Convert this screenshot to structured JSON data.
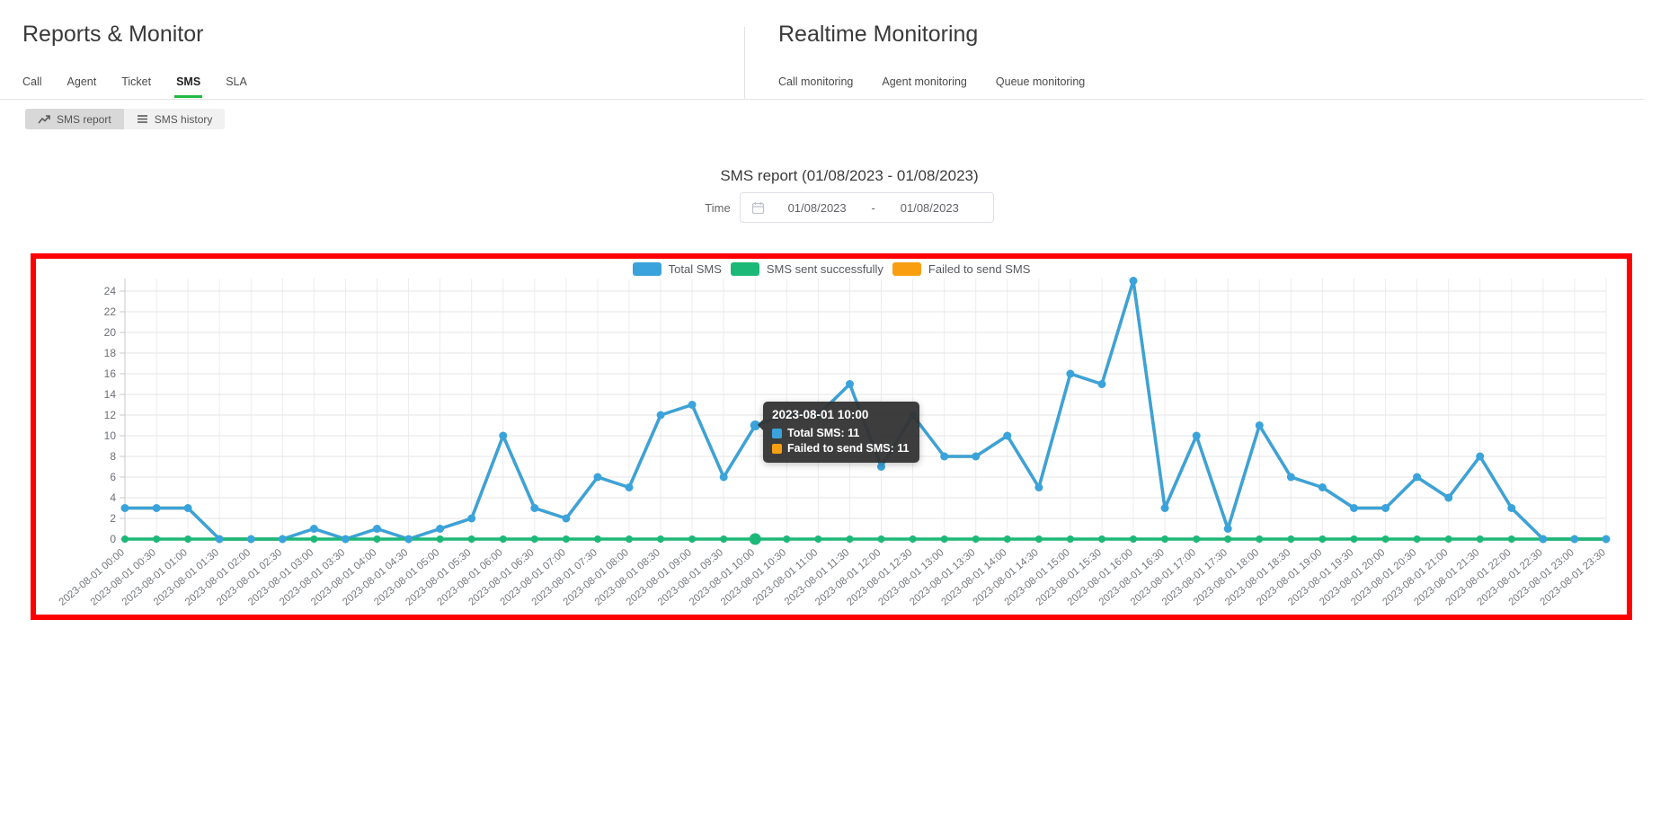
{
  "left_panel": {
    "title": "Reports & Monitor",
    "tabs": [
      "Call",
      "Agent",
      "Ticket",
      "SMS",
      "SLA"
    ],
    "active_tab": "SMS"
  },
  "right_panel": {
    "title": "Realtime Monitoring",
    "tabs": [
      "Call monitoring",
      "Agent monitoring",
      "Queue monitoring"
    ]
  },
  "toolbar": {
    "report_button": "SMS report",
    "history_button": "SMS history"
  },
  "report": {
    "title": "SMS report (01/08/2023 - 01/08/2023)",
    "time_label": "Time",
    "date_from": "01/08/2023",
    "date_separator": "-",
    "date_to": "01/08/2023"
  },
  "chart_data": {
    "type": "line",
    "x": [
      "2023-08-01 00:00",
      "2023-08-01 00:30",
      "2023-08-01 01:00",
      "2023-08-01 01:30",
      "2023-08-01 02:00",
      "2023-08-01 02:30",
      "2023-08-01 03:00",
      "2023-08-01 03:30",
      "2023-08-01 04:00",
      "2023-08-01 04:30",
      "2023-08-01 05:00",
      "2023-08-01 05:30",
      "2023-08-01 06:00",
      "2023-08-01 06:30",
      "2023-08-01 07:00",
      "2023-08-01 07:30",
      "2023-08-01 08:00",
      "2023-08-01 08:30",
      "2023-08-01 09:00",
      "2023-08-01 09:30",
      "2023-08-01 10:00",
      "2023-08-01 10:30",
      "2023-08-01 11:00",
      "2023-08-01 11:30",
      "2023-08-01 12:00",
      "2023-08-01 12:30",
      "2023-08-01 13:00",
      "2023-08-01 13:30",
      "2023-08-01 14:00",
      "2023-08-01 14:30",
      "2023-08-01 15:00",
      "2023-08-01 15:30",
      "2023-08-01 16:00",
      "2023-08-01 16:30",
      "2023-08-01 17:00",
      "2023-08-01 17:30",
      "2023-08-01 18:00",
      "2023-08-01 18:30",
      "2023-08-01 19:00",
      "2023-08-01 19:30",
      "2023-08-01 20:00",
      "2023-08-01 20:30",
      "2023-08-01 21:00",
      "2023-08-01 21:30",
      "2023-08-01 22:00",
      "2023-08-01 22:30",
      "2023-08-01 23:00",
      "2023-08-01 23:30"
    ],
    "series": [
      {
        "name": "Total SMS",
        "color": "#3aa3db",
        "values": [
          3,
          3,
          3,
          0,
          0,
          0,
          1,
          0,
          1,
          0,
          1,
          2,
          10,
          3,
          2,
          6,
          5,
          12,
          13,
          6,
          11,
          12,
          12,
          15,
          7,
          12,
          8,
          8,
          10,
          5,
          16,
          15,
          25,
          3,
          10,
          1,
          11,
          6,
          5,
          3,
          3,
          6,
          4,
          8,
          3,
          0,
          0,
          0
        ]
      },
      {
        "name": "SMS sent successfully",
        "color": "#1cb877",
        "values": [
          0,
          0,
          0,
          0,
          0,
          0,
          0,
          0,
          0,
          0,
          0,
          0,
          0,
          0,
          0,
          0,
          0,
          0,
          0,
          0,
          0,
          0,
          0,
          0,
          0,
          0,
          0,
          0,
          0,
          0,
          0,
          0,
          0,
          0,
          0,
          0,
          0,
          0,
          0,
          0,
          0,
          0,
          0,
          0,
          0,
          0,
          0,
          0
        ]
      },
      {
        "name": "Failed to send SMS",
        "color": "#f99e11",
        "values": [
          3,
          3,
          3,
          0,
          0,
          0,
          1,
          0,
          1,
          0,
          1,
          2,
          10,
          3,
          2,
          6,
          5,
          12,
          13,
          6,
          11,
          12,
          12,
          15,
          7,
          12,
          8,
          8,
          10,
          5,
          16,
          15,
          25,
          3,
          10,
          1,
          11,
          6,
          5,
          3,
          3,
          6,
          4,
          8,
          3,
          0,
          0,
          0
        ]
      }
    ],
    "ylim": [
      0,
      24
    ],
    "ytick_step": 2,
    "grid": true,
    "legend_position": "top"
  },
  "tooltip": {
    "title": "2023-08-01 10:00",
    "point_index": 20,
    "rows": [
      {
        "label": "Total SMS: 11",
        "color": "#3aa3db"
      },
      {
        "label": "Failed to send SMS: 11",
        "color": "#f99e11"
      }
    ]
  },
  "colors": {
    "accent_green": "#21ba45",
    "highlight_border": "#fe0000"
  }
}
